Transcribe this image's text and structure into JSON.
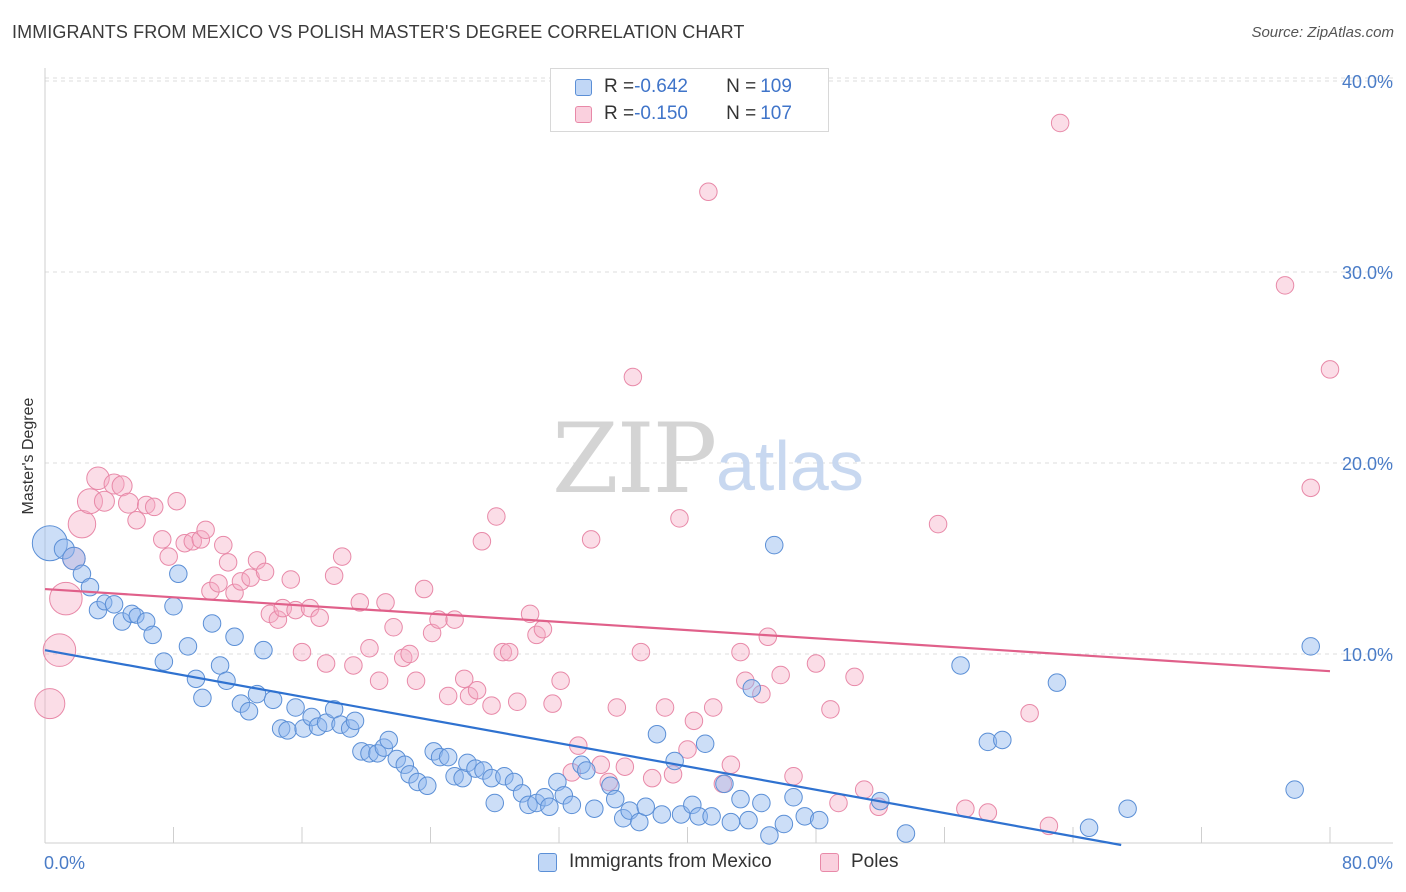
{
  "header": {
    "title": "IMMIGRANTS FROM MEXICO VS POLISH MASTER'S DEGREE CORRELATION CHART",
    "source": "Source: ZipAtlas.com"
  },
  "watermark": {
    "zip": "ZIP",
    "atlas": "atlas"
  },
  "legend": {
    "rows": [
      {
        "r_label": "R = ",
        "r_value": "-0.642",
        "n_label": "N = ",
        "n_value": "109"
      },
      {
        "r_label": "R = ",
        "r_value": "-0.150",
        "n_label": "N = ",
        "n_value": "107"
      }
    ]
  },
  "bottom_legend": {
    "series1": "Immigrants from Mexico",
    "series2": "Poles"
  },
  "colors": {
    "blue_fill": "rgba(142,182,238,0.45)",
    "blue_stroke": "#5b8fd6",
    "blue_line": "#2f72d0",
    "pink_fill": "rgba(246,170,195,0.40)",
    "pink_stroke": "#e889a8",
    "pink_line": "#e0608a",
    "grid": "#dddddd",
    "tick_label": "#4a7cc7"
  },
  "chart_data": {
    "type": "scatter",
    "title": "IMMIGRANTS FROM MEXICO VS POLISH MASTER'S DEGREE CORRELATION CHART",
    "xlabel": "",
    "ylabel": "Master's Degree",
    "xlim": [
      0,
      80
    ],
    "ylim": [
      0,
      40
    ],
    "x_tick_labels": [
      "0.0%",
      "80.0%"
    ],
    "y_ticks": [
      10,
      20,
      30,
      40
    ],
    "y_tick_labels": [
      "10.0%",
      "20.0%",
      "30.0%",
      "40.0%"
    ],
    "grid": true,
    "legend_position": "top-center",
    "series": [
      {
        "name": "Immigrants from Mexico",
        "r": -0.642,
        "n": 109,
        "trend": [
          [
            0,
            10.2
          ],
          [
            67,
            0
          ]
        ],
        "points": [
          [
            0.3,
            15.8,
            14
          ],
          [
            1.2,
            15.5,
            8
          ],
          [
            1.8,
            15,
            9
          ],
          [
            2.3,
            14.2,
            7
          ],
          [
            2.8,
            13.5,
            7
          ],
          [
            3.3,
            12.3,
            7
          ],
          [
            3.7,
            12.7,
            6
          ],
          [
            4.3,
            12.6,
            7
          ],
          [
            4.8,
            11.7,
            7
          ],
          [
            5.4,
            12.1,
            7
          ],
          [
            5.7,
            12,
            6
          ],
          [
            6.3,
            11.7,
            7
          ],
          [
            6.7,
            11,
            7
          ],
          [
            7.4,
            9.6,
            7
          ],
          [
            8,
            12.5,
            7
          ],
          [
            8.3,
            14.2,
            7
          ],
          [
            8.9,
            10.4,
            7
          ],
          [
            9.4,
            8.7,
            7
          ],
          [
            9.8,
            7.7,
            7
          ],
          [
            10.4,
            11.6,
            7
          ],
          [
            10.9,
            9.4,
            7
          ],
          [
            11.3,
            8.6,
            7
          ],
          [
            11.8,
            10.9,
            7
          ],
          [
            12.2,
            7.4,
            7
          ],
          [
            12.7,
            7,
            7
          ],
          [
            13.2,
            7.9,
            7
          ],
          [
            13.6,
            10.2,
            7
          ],
          [
            14.2,
            7.6,
            7
          ],
          [
            14.7,
            6.1,
            7
          ],
          [
            15.1,
            6,
            7
          ],
          [
            15.6,
            7.2,
            7
          ],
          [
            16.1,
            6.1,
            7
          ],
          [
            16.6,
            6.7,
            7
          ],
          [
            17,
            6.2,
            7
          ],
          [
            17.5,
            6.4,
            7
          ],
          [
            18,
            7.1,
            7
          ],
          [
            18.4,
            6.3,
            7
          ],
          [
            19,
            6.1,
            7
          ],
          [
            19.3,
            6.5,
            7
          ],
          [
            19.7,
            4.9,
            7
          ],
          [
            20.2,
            4.8,
            7
          ],
          [
            20.7,
            4.8,
            7
          ],
          [
            21.1,
            5.1,
            7
          ],
          [
            21.4,
            5.5,
            7
          ],
          [
            21.9,
            4.5,
            7
          ],
          [
            22.4,
            4.2,
            7
          ],
          [
            22.7,
            3.7,
            7
          ],
          [
            23.2,
            3.3,
            7
          ],
          [
            23.8,
            3.1,
            7
          ],
          [
            24.2,
            4.9,
            7
          ],
          [
            24.6,
            4.6,
            7
          ],
          [
            25.1,
            4.6,
            7
          ],
          [
            25.5,
            3.6,
            7
          ],
          [
            26,
            3.5,
            7
          ],
          [
            26.3,
            4.3,
            7
          ],
          [
            26.8,
            4,
            7
          ],
          [
            27.3,
            3.9,
            7
          ],
          [
            27.8,
            3.5,
            7
          ],
          [
            28,
            2.2,
            7
          ],
          [
            28.6,
            3.6,
            7
          ],
          [
            29.2,
            3.3,
            7
          ],
          [
            29.7,
            2.7,
            7
          ],
          [
            30.1,
            2.1,
            7
          ],
          [
            30.6,
            2.2,
            7
          ],
          [
            31.1,
            2.5,
            7
          ],
          [
            31.4,
            2,
            7
          ],
          [
            31.9,
            3.3,
            7
          ],
          [
            32.3,
            2.6,
            7
          ],
          [
            32.8,
            2.1,
            7
          ],
          [
            33.4,
            4.2,
            7
          ],
          [
            33.7,
            3.9,
            7
          ],
          [
            34.2,
            1.9,
            7
          ],
          [
            35.2,
            3.1,
            7
          ],
          [
            35.5,
            2.4,
            7
          ],
          [
            36,
            1.4,
            7
          ],
          [
            36.4,
            1.8,
            7
          ],
          [
            37,
            1.2,
            7
          ],
          [
            37.4,
            2,
            7
          ],
          [
            38.1,
            5.8,
            7
          ],
          [
            38.4,
            1.6,
            7
          ],
          [
            39.2,
            4.4,
            7
          ],
          [
            39.6,
            1.6,
            7
          ],
          [
            40.3,
            2.1,
            7
          ],
          [
            40.7,
            1.5,
            7
          ],
          [
            41.1,
            5.3,
            7
          ],
          [
            41.5,
            1.5,
            7
          ],
          [
            42.3,
            3.2,
            7
          ],
          [
            42.7,
            1.2,
            7
          ],
          [
            43.3,
            2.4,
            7
          ],
          [
            43.8,
            1.3,
            7
          ],
          [
            44,
            8.2,
            7
          ],
          [
            44.6,
            2.2,
            7
          ],
          [
            45.1,
            0.5,
            7
          ],
          [
            45.4,
            15.7,
            7
          ],
          [
            46,
            1.1,
            7
          ],
          [
            46.6,
            2.5,
            7
          ],
          [
            47.3,
            1.5,
            7
          ],
          [
            48.2,
            1.3,
            7
          ],
          [
            52,
            2.3,
            7
          ],
          [
            53.6,
            0.6,
            7
          ],
          [
            57,
            9.4,
            7
          ],
          [
            58.7,
            5.4,
            7
          ],
          [
            59.6,
            5.5,
            7
          ],
          [
            63,
            8.5,
            7
          ],
          [
            65,
            0.9,
            7
          ],
          [
            67.4,
            1.9,
            7
          ],
          [
            77.8,
            2.9,
            7
          ],
          [
            78.8,
            10.4,
            7
          ]
        ]
      },
      {
        "name": "Poles",
        "r": -0.15,
        "n": 107,
        "trend": [
          [
            0,
            13.4
          ],
          [
            80,
            9.1
          ]
        ],
        "points": [
          [
            0.3,
            7.4,
            12
          ],
          [
            0.9,
            10.2,
            13
          ],
          [
            1.3,
            12.9,
            13
          ],
          [
            1.8,
            15,
            9
          ],
          [
            2.3,
            16.8,
            11
          ],
          [
            2.8,
            18,
            10
          ],
          [
            3.3,
            19.2,
            9
          ],
          [
            3.7,
            18,
            8
          ],
          [
            4.3,
            18.9,
            8
          ],
          [
            4.8,
            18.8,
            8
          ],
          [
            5.2,
            17.9,
            8
          ],
          [
            5.7,
            17,
            7
          ],
          [
            6.3,
            17.8,
            7
          ],
          [
            6.8,
            17.7,
            7
          ],
          [
            7.3,
            16,
            7
          ],
          [
            7.7,
            15.1,
            7
          ],
          [
            8.2,
            18,
            7
          ],
          [
            8.7,
            15.8,
            7
          ],
          [
            9.2,
            15.9,
            7
          ],
          [
            9.7,
            16,
            7
          ],
          [
            10,
            16.5,
            7
          ],
          [
            10.3,
            13.3,
            7
          ],
          [
            10.8,
            13.7,
            7
          ],
          [
            11.1,
            15.7,
            7
          ],
          [
            11.4,
            14.8,
            7
          ],
          [
            11.8,
            13.2,
            7
          ],
          [
            12.2,
            13.8,
            7
          ],
          [
            12.8,
            14,
            7
          ],
          [
            13.2,
            14.9,
            7
          ],
          [
            13.7,
            14.3,
            7
          ],
          [
            14,
            12.1,
            7
          ],
          [
            14.5,
            11.8,
            7
          ],
          [
            14.8,
            12.4,
            7
          ],
          [
            15.3,
            13.9,
            7
          ],
          [
            15.6,
            12.3,
            7
          ],
          [
            16,
            10.1,
            7
          ],
          [
            16.5,
            12.4,
            7
          ],
          [
            17.1,
            11.9,
            7
          ],
          [
            17.5,
            9.5,
            7
          ],
          [
            18,
            14.1,
            7
          ],
          [
            18.5,
            15.1,
            7
          ],
          [
            19.2,
            9.4,
            7
          ],
          [
            19.6,
            12.7,
            7
          ],
          [
            20.2,
            10.3,
            7
          ],
          [
            20.8,
            8.6,
            7
          ],
          [
            21.2,
            12.7,
            7
          ],
          [
            21.7,
            11.4,
            7
          ],
          [
            22.3,
            9.8,
            7
          ],
          [
            22.7,
            10,
            7
          ],
          [
            23.1,
            8.6,
            7
          ],
          [
            23.6,
            13.4,
            7
          ],
          [
            24.1,
            11.1,
            7
          ],
          [
            24.5,
            11.8,
            7
          ],
          [
            25.1,
            7.8,
            7
          ],
          [
            25.5,
            11.8,
            7
          ],
          [
            26.1,
            8.7,
            7
          ],
          [
            26.4,
            7.8,
            7
          ],
          [
            26.9,
            8.1,
            7
          ],
          [
            27.2,
            15.9,
            7
          ],
          [
            27.8,
            7.3,
            7
          ],
          [
            28.1,
            17.2,
            7
          ],
          [
            28.5,
            10.1,
            7
          ],
          [
            28.9,
            10.1,
            7
          ],
          [
            29.4,
            7.5,
            7
          ],
          [
            30.2,
            12.1,
            7
          ],
          [
            30.6,
            11,
            7
          ],
          [
            31,
            11.3,
            7
          ],
          [
            31.6,
            7.4,
            7
          ],
          [
            32.1,
            8.6,
            7
          ],
          [
            32.8,
            3.8,
            7
          ],
          [
            33.2,
            5.2,
            7
          ],
          [
            34,
            16,
            7
          ],
          [
            34.6,
            4.2,
            7
          ],
          [
            35.1,
            3.3,
            7
          ],
          [
            35.6,
            7.2,
            7
          ],
          [
            36.1,
            4.1,
            7
          ],
          [
            36.6,
            24.5,
            7
          ],
          [
            37.1,
            10.1,
            7
          ],
          [
            37.8,
            3.5,
            7
          ],
          [
            38.6,
            7.2,
            7
          ],
          [
            39.1,
            3.7,
            7
          ],
          [
            39.5,
            17.1,
            7
          ],
          [
            40,
            5,
            7
          ],
          [
            40.4,
            6.5,
            7
          ],
          [
            41.3,
            34.2,
            7
          ],
          [
            41.6,
            7.2,
            7
          ],
          [
            42.2,
            3.2,
            7
          ],
          [
            42.7,
            4.2,
            7
          ],
          [
            43.3,
            10.1,
            7
          ],
          [
            43.6,
            8.6,
            7
          ],
          [
            44.6,
            7.9,
            7
          ],
          [
            45,
            10.9,
            7
          ],
          [
            45.8,
            8.9,
            7
          ],
          [
            46.6,
            3.6,
            7
          ],
          [
            48,
            9.5,
            7
          ],
          [
            48.9,
            7.1,
            7
          ],
          [
            49.4,
            2.2,
            7
          ],
          [
            50.4,
            8.8,
            7
          ],
          [
            51,
            2.9,
            7
          ],
          [
            51.9,
            2,
            7
          ],
          [
            55.6,
            16.8,
            7
          ],
          [
            57.3,
            1.9,
            7
          ],
          [
            58.7,
            1.7,
            7
          ],
          [
            61.3,
            6.9,
            7
          ],
          [
            62.5,
            1,
            7
          ],
          [
            63.2,
            37.8,
            7
          ],
          [
            77.2,
            29.3,
            7
          ],
          [
            78.8,
            18.7,
            7
          ],
          [
            80,
            24.9,
            7
          ]
        ]
      }
    ]
  }
}
